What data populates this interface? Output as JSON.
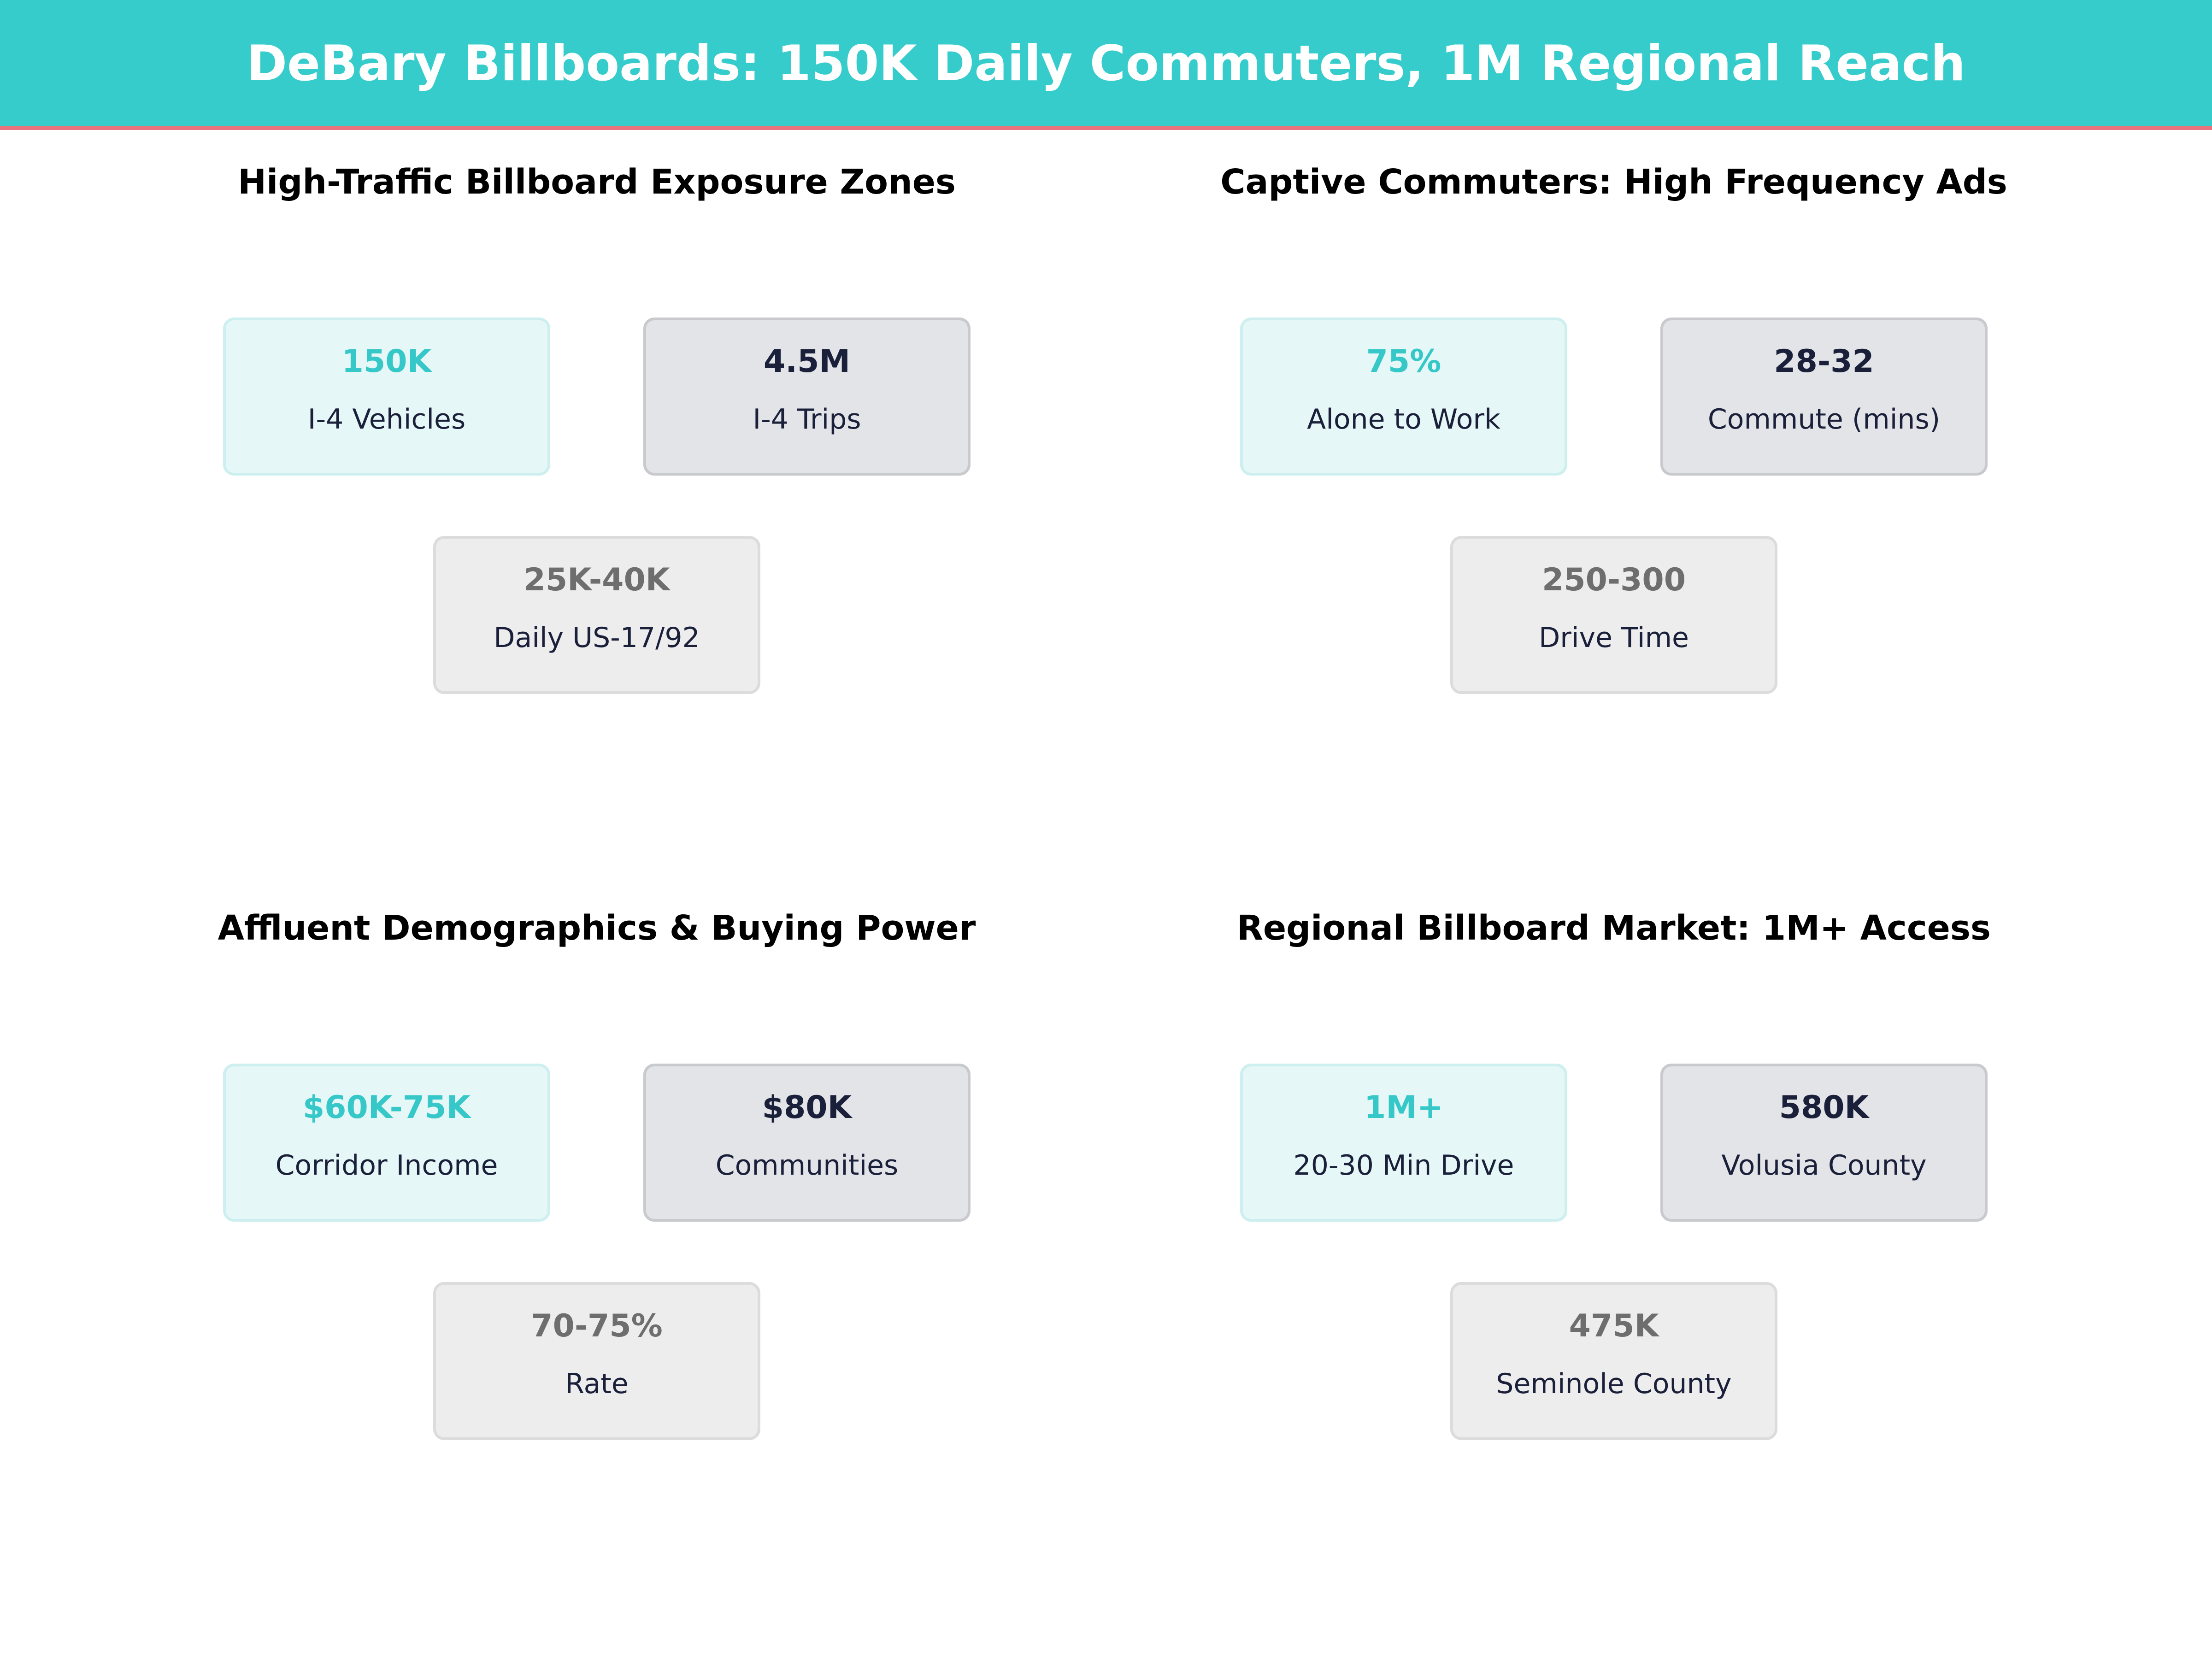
{
  "header": {
    "title": "DeBary Billboards: 150K Daily Commuters, 1M Regional Reach"
  },
  "panels": [
    {
      "title": "High-Traffic Billboard Exposure Zones",
      "cards": [
        {
          "value": "150K",
          "label": "I-4 Vehicles"
        },
        {
          "value": "4.5M",
          "label": "I-4 Trips"
        },
        {
          "value": "25K-40K",
          "label": "Daily US-17/92"
        }
      ]
    },
    {
      "title": "Captive Commuters: High Frequency Ads",
      "cards": [
        {
          "value": "75%",
          "label": "Alone to Work"
        },
        {
          "value": "28-32",
          "label": "Commute (mins)"
        },
        {
          "value": "250-300",
          "label": "Drive Time"
        }
      ]
    },
    {
      "title": "Affluent Demographics & Buying Power",
      "cards": [
        {
          "value": "$60K-75K",
          "label": "Corridor Income"
        },
        {
          "value": "$80K",
          "label": "Communities"
        },
        {
          "value": "70-75%",
          "label": "Rate"
        }
      ]
    },
    {
      "title": "Regional Billboard Market: 1M+ Access",
      "cards": [
        {
          "value": "1M+",
          "label": "20-30 Min Drive"
        },
        {
          "value": "580K",
          "label": "Volusia County"
        },
        {
          "value": "475K",
          "label": "Seminole County"
        }
      ]
    }
  ]
}
